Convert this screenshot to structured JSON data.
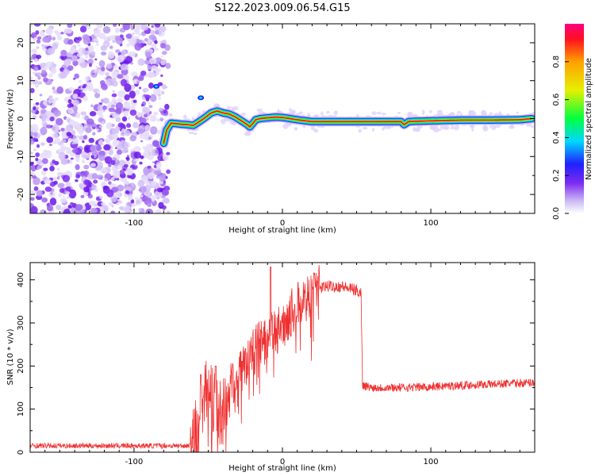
{
  "figure": {
    "title": "S122.2023.009.06.54.G15"
  },
  "chart_data": [
    {
      "type": "heatmap",
      "xlabel": "Height of straight line (km)",
      "ylabel": "Frequency (Hz)",
      "xlim": [
        -170,
        170
      ],
      "ylim": [
        -25,
        25
      ],
      "xticks": [
        -100,
        0,
        100
      ],
      "yticks": [
        -20,
        -10,
        0,
        10,
        20
      ],
      "colorbar": {
        "label": "Normalized spectral amplitude",
        "range": [
          0,
          1
        ],
        "ticks": [
          0.0,
          0.2,
          0.4,
          0.6,
          0.8
        ],
        "colormap": [
          "#ffffff",
          "#c8b4f5",
          "#7d2bf0",
          "#2020ff",
          "#00d8ff",
          "#00ff40",
          "#e6f000",
          "#ffa000",
          "#ff1020",
          "#ff0080"
        ]
      },
      "ridge": {
        "x": [
          -80,
          -78,
          -75,
          -72,
          -68,
          -64,
          -60,
          -56,
          -52,
          -48,
          -44,
          -40,
          -36,
          -32,
          -28,
          -24,
          -22,
          -20,
          -18,
          -15,
          -10,
          -5,
          0,
          5,
          10,
          20,
          40,
          60,
          80,
          82,
          85,
          90,
          100,
          110,
          120,
          140,
          160,
          168
        ],
        "y": [
          -6.5,
          -3,
          -1.2,
          -1.3,
          -1.5,
          -1.6,
          -1.8,
          -0.8,
          0.3,
          1.5,
          2.0,
          1.5,
          1.2,
          0.5,
          -0.5,
          -1.5,
          -2.2,
          -1.3,
          -0.3,
          0.0,
          0.2,
          0.4,
          0.3,
          0.0,
          -0.3,
          -0.8,
          -0.8,
          -0.8,
          -0.8,
          -1.6,
          -0.8,
          -0.7,
          -0.6,
          -0.5,
          -0.4,
          -0.4,
          -0.3,
          0.0
        ]
      }
    },
    {
      "type": "line",
      "xlabel": "Height of straight line (km)",
      "ylabel": "SNR (10 * v/v)",
      "xlim": [
        -170,
        170
      ],
      "ylim": [
        0,
        440
      ],
      "xticks": [
        -100,
        0,
        100
      ],
      "yticks": [
        0,
        100,
        200,
        300,
        400
      ],
      "color": "#f03030",
      "envelope": {
        "x": [
          -170,
          -62,
          -58,
          -52,
          -46,
          -40,
          -34,
          -28,
          -22,
          -16,
          -10,
          -5,
          0,
          5,
          10,
          15,
          20,
          25,
          30,
          40,
          50,
          53,
          54,
          60,
          80,
          100,
          120,
          140,
          160,
          170
        ],
        "y": [
          15,
          15,
          60,
          150,
          110,
          90,
          160,
          190,
          220,
          250,
          260,
          280,
          290,
          320,
          340,
          355,
          370,
          380,
          385,
          385,
          375,
          370,
          155,
          150,
          150,
          152,
          155,
          158,
          160,
          162
        ]
      },
      "peaks": [
        {
          "x": -8,
          "y": 430
        },
        {
          "x": -55,
          "y": 180
        },
        {
          "x": -45,
          "y": 200
        },
        {
          "x": -25,
          "y": 240
        }
      ]
    }
  ]
}
